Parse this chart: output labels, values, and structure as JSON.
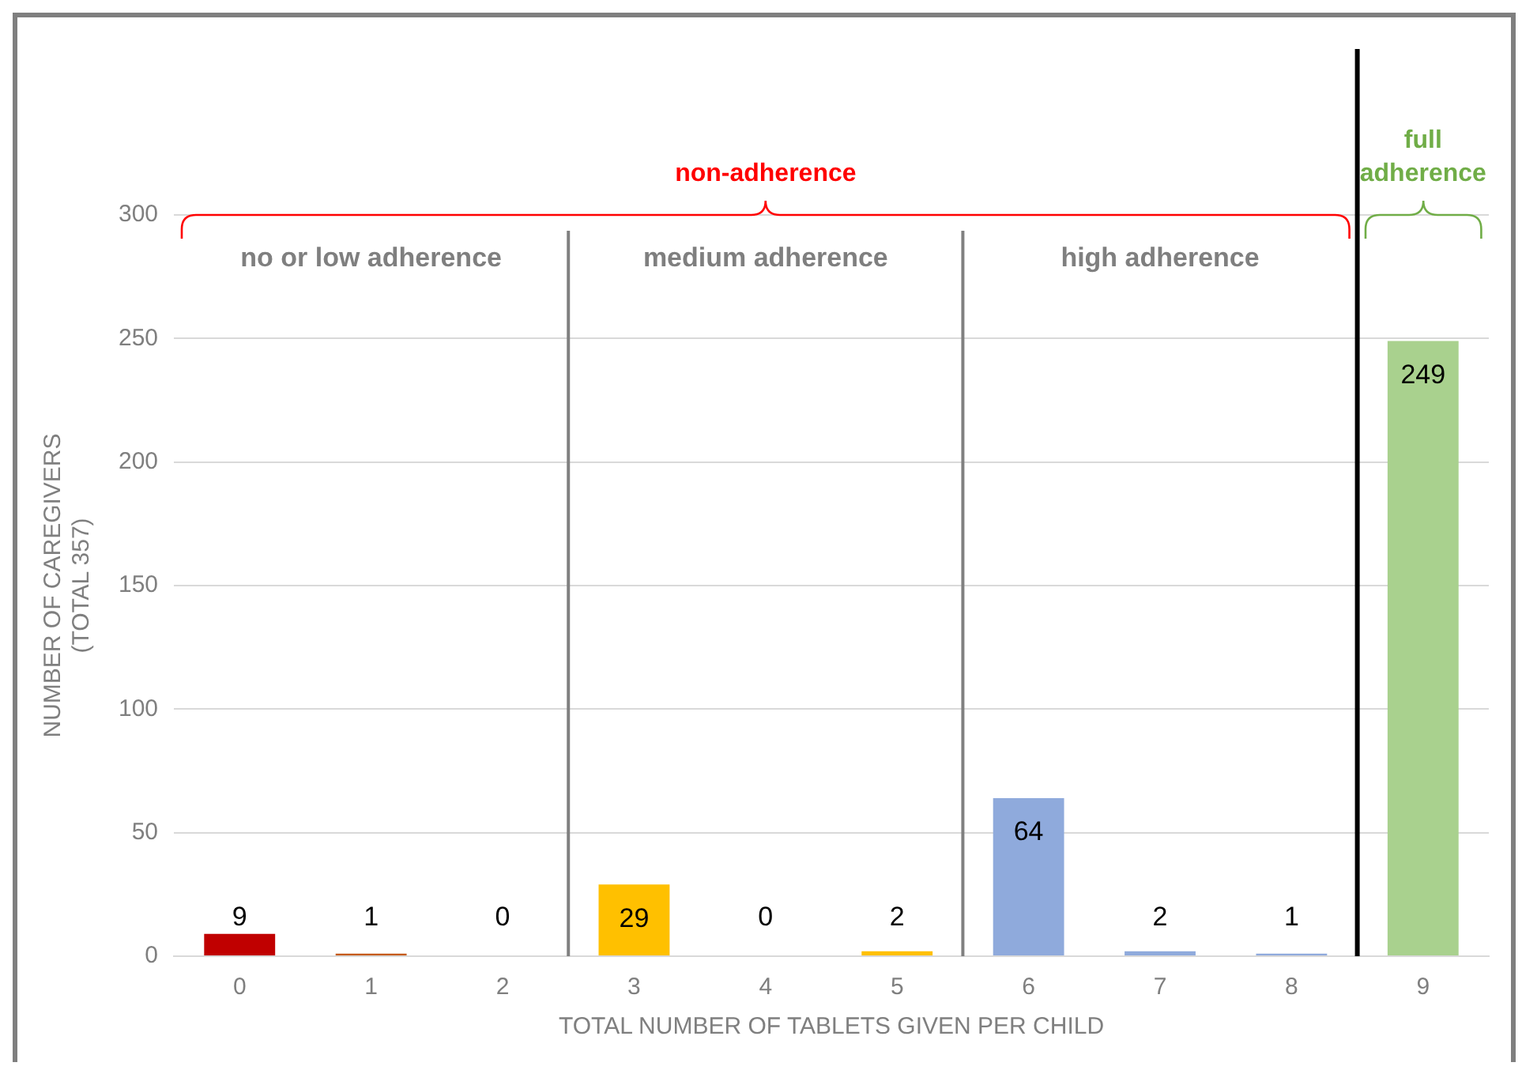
{
  "chart_data": {
    "type": "bar",
    "xlabel": "TOTAL NUMBER OF TABLETS GIVEN PER CHILD",
    "ylabel": "NUMBER OF CAREGIVERS\n(TOTAL 357)",
    "x": [
      0,
      1,
      2,
      3,
      4,
      5,
      6,
      7,
      8,
      9
    ],
    "values": [
      9,
      1,
      0,
      29,
      0,
      2,
      64,
      2,
      1,
      249
    ],
    "colors": [
      "#c00000",
      "#c55a11",
      "#c55a11",
      "#ffc000",
      "#ffc000",
      "#ffc000",
      "#8faadc",
      "#8faadc",
      "#8faadc",
      "#a9d18e"
    ],
    "xlim": [
      -0.5,
      9.5
    ],
    "xticks": [
      0,
      1,
      2,
      3,
      4,
      5,
      6,
      7,
      8,
      9
    ],
    "ylim": [
      0,
      300
    ],
    "yticks": [
      0,
      50,
      100,
      150,
      200,
      250,
      300
    ],
    "grid": "y",
    "legend": false,
    "data_labels": true,
    "ref_lines": [
      {
        "axis": "x",
        "value": 2.5,
        "color": "#808080"
      },
      {
        "axis": "x",
        "value": 5.5,
        "color": "#808080"
      },
      {
        "axis": "x",
        "value": 8.5,
        "color": "#000000"
      }
    ],
    "annotations": [
      "non-adherence",
      "full adherence",
      "no or low adherence",
      "medium adherence",
      "high adherence"
    ]
  }
}
